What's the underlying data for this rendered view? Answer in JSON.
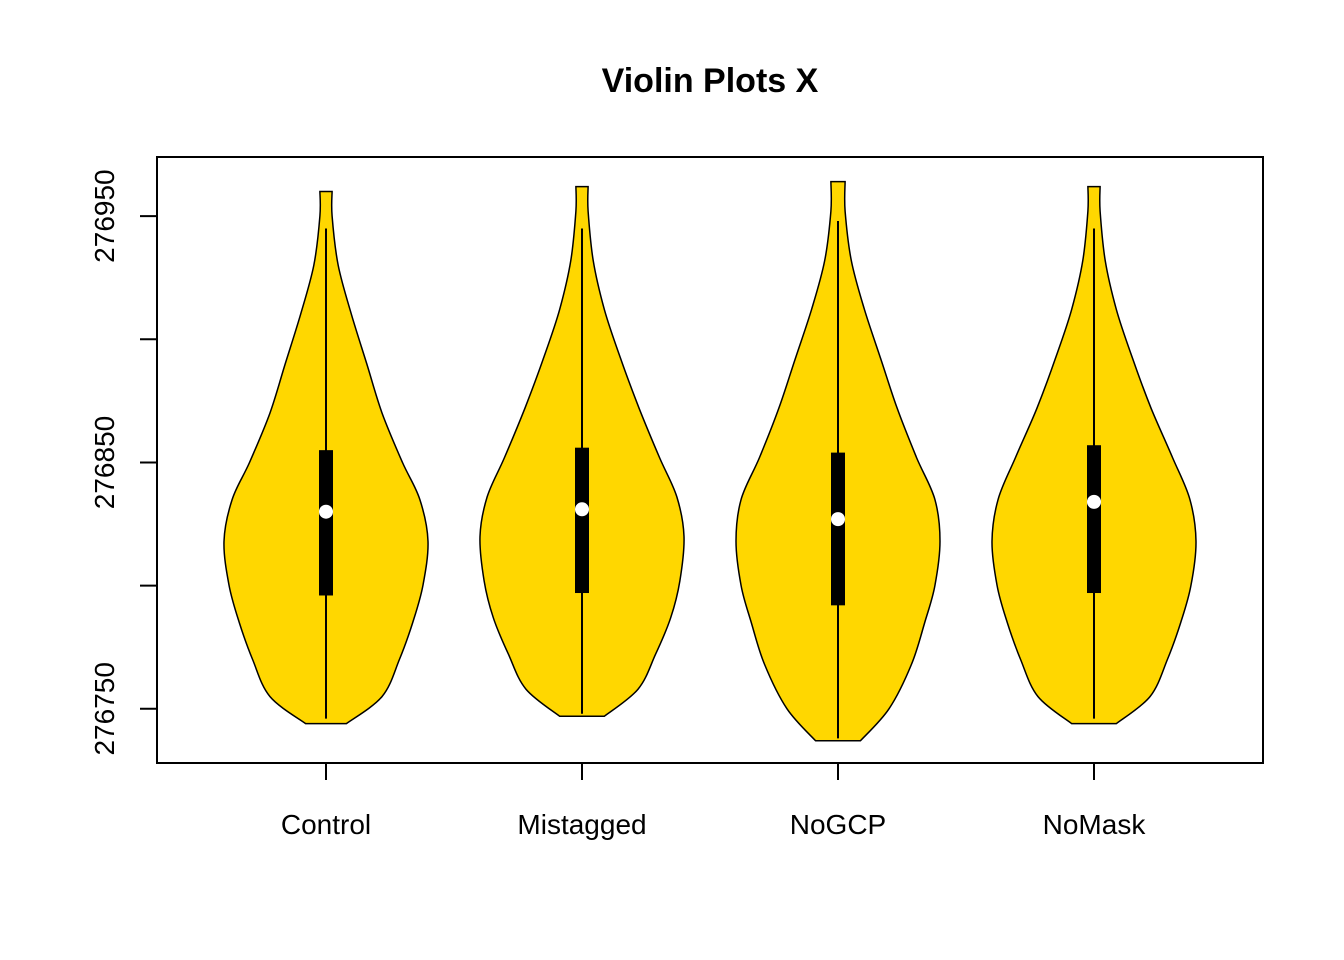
{
  "chart_data": {
    "type": "violin",
    "title": "Violin Plots X",
    "xlabel": "",
    "ylabel": "",
    "categories": [
      "Control",
      "Mistagged",
      "NoGCP",
      "NoMask"
    ],
    "ylim": [
      276728,
      276974
    ],
    "y_ticks": [
      276750,
      276800,
      276850,
      276900,
      276950
    ],
    "y_tick_labels": [
      "276750",
      "",
      "276850",
      "",
      "276950"
    ],
    "grid": false,
    "legend": "none",
    "fill_color": "#FFD700",
    "outline_color": "#000000",
    "box_color": "#000000",
    "median_color": "#FFFFFF",
    "series": [
      {
        "category": "Control",
        "min": 276746,
        "q1": 276796,
        "median": 276830,
        "q3": 276855,
        "max": 276945,
        "upper_whisker": 276945,
        "lower_whisker": 276746,
        "density": [
          [
            276744,
            0.2
          ],
          [
            276755,
            0.55
          ],
          [
            276770,
            0.72
          ],
          [
            276785,
            0.85
          ],
          [
            276800,
            0.95
          ],
          [
            276818,
            1.0
          ],
          [
            276835,
            0.92
          ],
          [
            276850,
            0.75
          ],
          [
            276870,
            0.55
          ],
          [
            276890,
            0.4
          ],
          [
            276910,
            0.25
          ],
          [
            276930,
            0.12
          ],
          [
            276950,
            0.06
          ],
          [
            276960,
            0.06
          ]
        ]
      },
      {
        "category": "Mistagged",
        "min": 276748,
        "q1": 276797,
        "median": 276831,
        "q3": 276856,
        "max": 276945,
        "upper_whisker": 276945,
        "lower_whisker": 276748,
        "density": [
          [
            276747,
            0.22
          ],
          [
            276758,
            0.55
          ],
          [
            276772,
            0.72
          ],
          [
            276787,
            0.87
          ],
          [
            276802,
            0.96
          ],
          [
            276820,
            1.0
          ],
          [
            276836,
            0.93
          ],
          [
            276852,
            0.76
          ],
          [
            276872,
            0.56
          ],
          [
            276892,
            0.38
          ],
          [
            276912,
            0.22
          ],
          [
            276932,
            0.11
          ],
          [
            276952,
            0.06
          ],
          [
            276962,
            0.06
          ]
        ]
      },
      {
        "category": "NoGCP",
        "min": 276738,
        "q1": 276792,
        "median": 276827,
        "q3": 276854,
        "max": 276948,
        "upper_whisker": 276948,
        "lower_whisker": 276738,
        "density": [
          [
            276737,
            0.22
          ],
          [
            276750,
            0.5
          ],
          [
            276768,
            0.72
          ],
          [
            276785,
            0.85
          ],
          [
            276800,
            0.95
          ],
          [
            276818,
            1.0
          ],
          [
            276835,
            0.95
          ],
          [
            276852,
            0.77
          ],
          [
            276872,
            0.58
          ],
          [
            276892,
            0.42
          ],
          [
            276912,
            0.26
          ],
          [
            276932,
            0.13
          ],
          [
            276952,
            0.07
          ],
          [
            276964,
            0.07
          ]
        ]
      },
      {
        "category": "NoMask",
        "min": 276746,
        "q1": 276797,
        "median": 276834,
        "q3": 276857,
        "max": 276945,
        "upper_whisker": 276945,
        "lower_whisker": 276746,
        "density": [
          [
            276744,
            0.22
          ],
          [
            276755,
            0.55
          ],
          [
            276770,
            0.72
          ],
          [
            276785,
            0.85
          ],
          [
            276800,
            0.95
          ],
          [
            276818,
            1.0
          ],
          [
            276835,
            0.94
          ],
          [
            276852,
            0.77
          ],
          [
            276872,
            0.56
          ],
          [
            276892,
            0.38
          ],
          [
            276912,
            0.22
          ],
          [
            276932,
            0.11
          ],
          [
            276952,
            0.06
          ],
          [
            276962,
            0.06
          ]
        ]
      }
    ]
  }
}
